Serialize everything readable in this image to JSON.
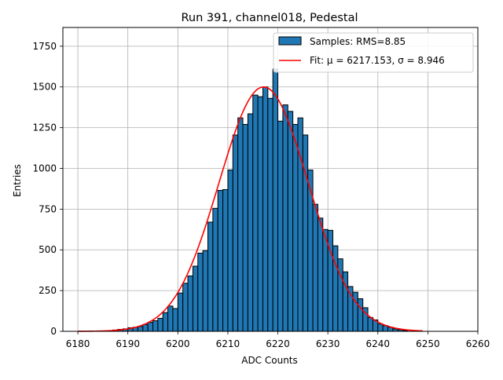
{
  "chart_data": {
    "type": "bar",
    "title": "Run 391, channel018, Pedestal",
    "xlabel": "ADC Counts",
    "ylabel": "Entries",
    "xlim": [
      6177,
      6260
    ],
    "ylim": [
      0,
      1865
    ],
    "xticks": [
      6180,
      6190,
      6200,
      6210,
      6220,
      6230,
      6240,
      6250,
      6260
    ],
    "yticks": [
      0,
      250,
      500,
      750,
      1000,
      1250,
      1500,
      1750
    ],
    "grid": true,
    "legend_position": "top-right",
    "bin_width": 1,
    "bins": {
      "x_start": [
        6187,
        6188,
        6189,
        6190,
        6191,
        6192,
        6193,
        6194,
        6195,
        6196,
        6197,
        6198,
        6199,
        6200,
        6201,
        6202,
        6203,
        6204,
        6205,
        6206,
        6207,
        6208,
        6209,
        6210,
        6211,
        6212,
        6213,
        6214,
        6215,
        6216,
        6217,
        6218,
        6219,
        6220,
        6221,
        6222,
        6223,
        6224,
        6225,
        6226,
        6227,
        6228,
        6229,
        6230,
        6231,
        6232,
        6233,
        6234,
        6235,
        6236,
        6237,
        6238,
        6239,
        6240,
        6241,
        6242,
        6243,
        6244,
        6245
      ],
      "counts": [
        8,
        12,
        15,
        22,
        25,
        30,
        42,
        55,
        65,
        80,
        115,
        155,
        140,
        235,
        295,
        340,
        400,
        480,
        495,
        670,
        755,
        865,
        870,
        990,
        1205,
        1310,
        1270,
        1335,
        1450,
        1440,
        1500,
        1430,
        1610,
        1290,
        1390,
        1350,
        1270,
        1310,
        1205,
        990,
        780,
        695,
        625,
        620,
        525,
        445,
        365,
        275,
        240,
        200,
        145,
        85,
        70,
        45,
        35,
        25,
        15,
        10,
        5
      ]
    },
    "series": [
      {
        "name": "Samples: RMS=8.85",
        "kind": "histogram",
        "color": "#1f77b4",
        "edgecolor": "#000000"
      },
      {
        "name": "Fit: μ = 6217.153, σ = 8.946",
        "kind": "gaussian-fit",
        "color": "#ff0000",
        "mu": 6217.153,
        "sigma": 8.946,
        "amplitude": 1500,
        "x_range": [
          6180,
          6249
        ]
      }
    ]
  }
}
